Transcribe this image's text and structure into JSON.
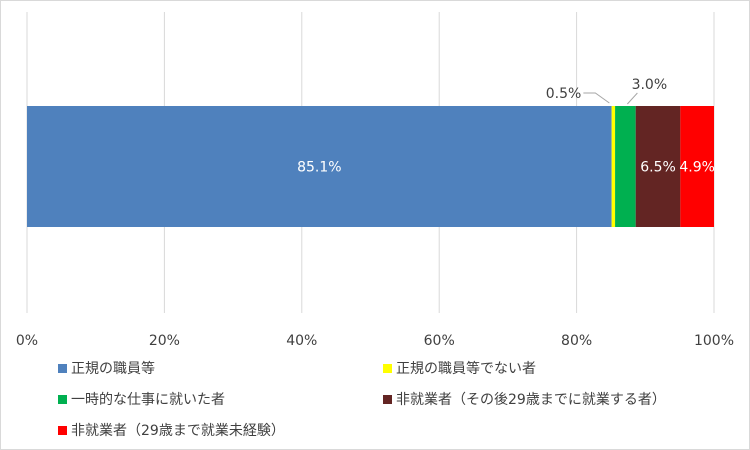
{
  "chart_data": {
    "type": "bar",
    "orientation": "horizontal",
    "stacked": true,
    "normalized": true,
    "categories": [
      ""
    ],
    "series": [
      {
        "name": "正規の職員等",
        "values": [
          85.1
        ],
        "label": "85.1%",
        "color": "#4f81bd"
      },
      {
        "name": "正規の職員等でない者",
        "values": [
          0.5
        ],
        "label": "0.5%",
        "color": "#ffff00"
      },
      {
        "name": "一時的な仕事に就いた者",
        "values": [
          3.0
        ],
        "label": "3.0%",
        "color": "#00b050"
      },
      {
        "name": "非就業者（その後29歳までに就業する者）",
        "values": [
          6.5
        ],
        "label": "6.5%",
        "color": "#632523"
      },
      {
        "name": "非就業者（29歳まで就業未経験）",
        "values": [
          4.9
        ],
        "label": "4.9%",
        "color": "#ff0000"
      }
    ],
    "x_ticks": [
      "0%",
      "20%",
      "40%",
      "60%",
      "80%",
      "100%"
    ],
    "xlim": [
      0,
      100
    ],
    "grid": "vertical",
    "legend_position": "bottom",
    "title": "",
    "xlabel": "",
    "ylabel": ""
  }
}
